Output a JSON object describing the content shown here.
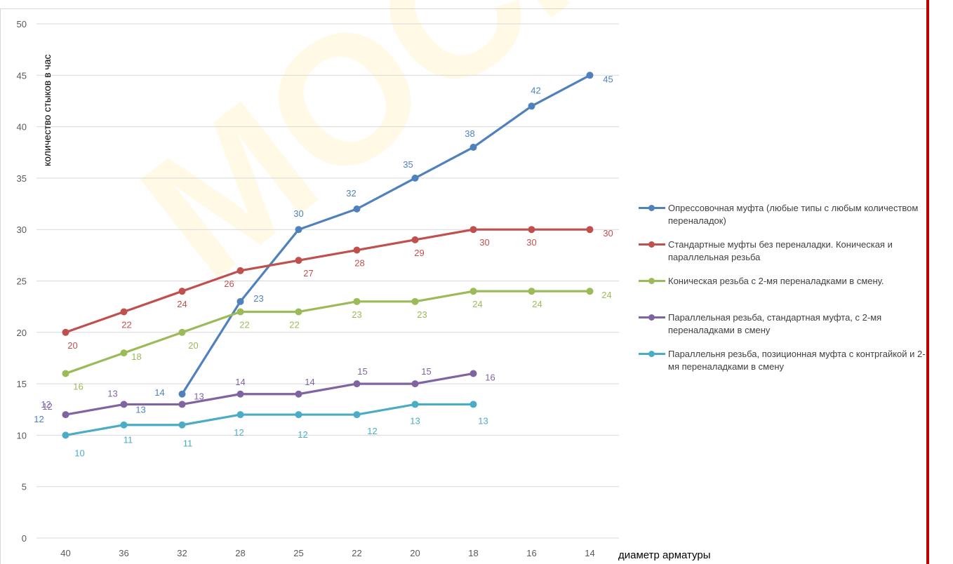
{
  "watermark_text": "МОСМ",
  "chart_data": {
    "type": "line",
    "title": "",
    "xlabel": "диаметр арматуры",
    "ylabel": "количество стыков в час",
    "categories": [
      "40",
      "36",
      "32",
      "28",
      "25",
      "22",
      "20",
      "18",
      "16",
      "14"
    ],
    "ylim": [
      0,
      50
    ],
    "yticks": [
      0,
      5,
      10,
      15,
      20,
      25,
      30,
      35,
      40,
      45,
      50
    ],
    "grid": true,
    "legend_position": "right",
    "series": [
      {
        "name": "Опрессовочная муфта (любые типы с любым количеством переналадок)",
        "color": "#4f81bd",
        "values": [
          null,
          null,
          14,
          23,
          30,
          32,
          35,
          38,
          42,
          45
        ]
      },
      {
        "name": "Стандартные муфты без переналадки. Коническая и параллельная резьба",
        "color": "#c0504d",
        "values": [
          20,
          22,
          24,
          26,
          27,
          28,
          29,
          30,
          30,
          30
        ]
      },
      {
        "name": "Коническая резьба с 2-мя переналадками в смену.",
        "color": "#9bbb59",
        "values": [
          16,
          18,
          20,
          22,
          22,
          23,
          23,
          24,
          24,
          24
        ]
      },
      {
        "name": "Параллельная резьба, стандартная муфта, с 2-мя переналадками в смену",
        "color": "#8064a2",
        "values": [
          12,
          13,
          13,
          14,
          14,
          15,
          15,
          16,
          null,
          null
        ]
      },
      {
        "name": "Параллельня резьба, позиционная муфта с контргайкой и 2-мя переналадками в смену",
        "color": "#4bacc6",
        "values": [
          10,
          11,
          11,
          12,
          12,
          12,
          13,
          13,
          null,
          null
        ]
      }
    ],
    "extra_labels": [
      {
        "text": "12",
        "color": "#4f81bd"
      },
      {
        "text": "13",
        "color": "#4f81bd"
      },
      {
        "text": "12",
        "color": "#8064a2"
      }
    ]
  }
}
